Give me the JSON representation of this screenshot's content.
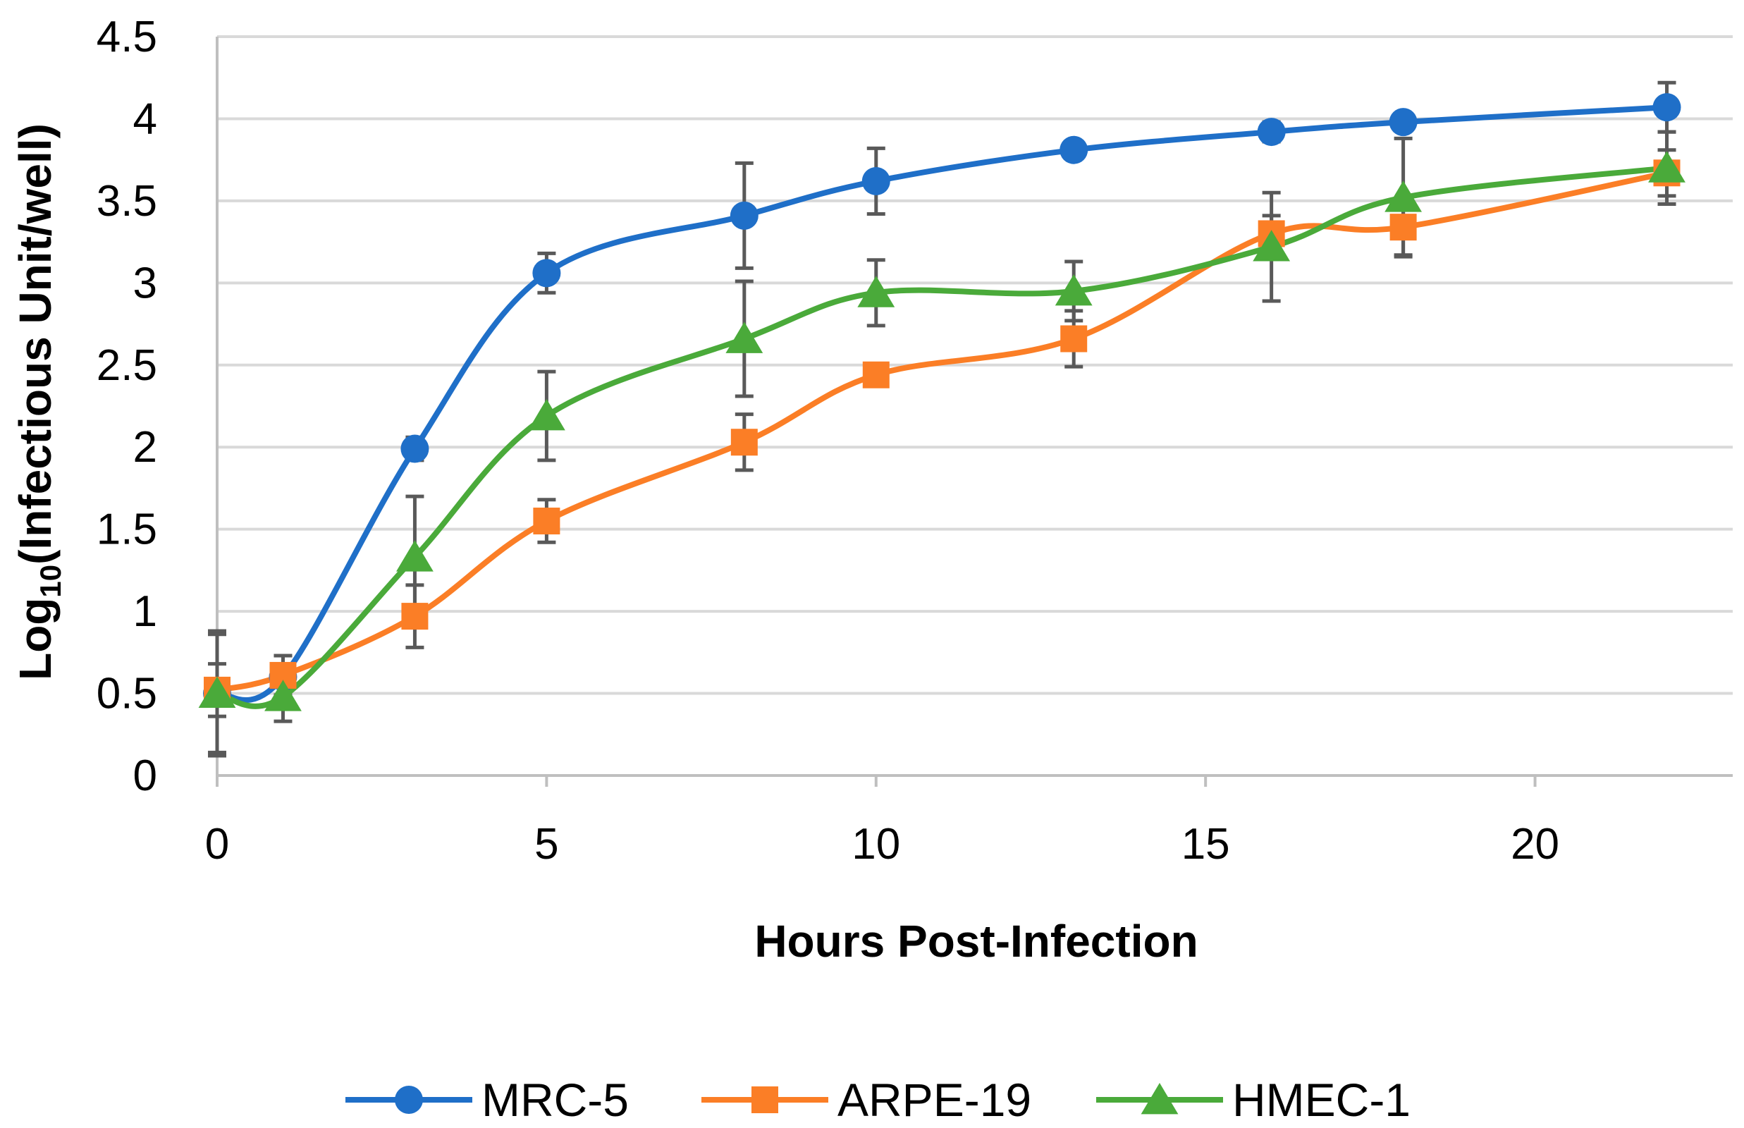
{
  "chart_data": {
    "type": "line",
    "title": "",
    "xlabel": "Hours Post-Infection",
    "ylabel": {
      "prefix": "Log",
      "subscript": "10",
      "suffix": "(Infectious Unit/well)"
    },
    "xlim": [
      0,
      23
    ],
    "ylim": [
      0,
      4.5
    ],
    "x_ticks": [
      "0",
      "5",
      "10",
      "15",
      "20"
    ],
    "y_ticks": [
      "0",
      "0.5",
      "1",
      "1.5",
      "2",
      "2.5",
      "3",
      "3.5",
      "4",
      "4.5"
    ],
    "grid": "horizontal",
    "legend_position": "bottom",
    "series": [
      {
        "name": "MRC-5",
        "color": "#1f6fc8",
        "marker": "circle",
        "x": [
          0,
          1,
          3,
          5,
          8,
          10,
          13,
          16,
          18,
          22
        ],
        "y": [
          0.5,
          0.6,
          1.99,
          3.06,
          3.41,
          3.62,
          3.81,
          3.92,
          3.98,
          4.07
        ],
        "error": [
          0.38,
          0.13,
          0.07,
          0.12,
          0.32,
          0.2,
          0.02,
          0.06,
          0.04,
          0.15
        ]
      },
      {
        "name": "ARPE-19",
        "color": "#fb7e26",
        "marker": "square",
        "x": [
          0,
          1,
          3,
          5,
          8,
          10,
          13,
          16,
          18,
          22
        ],
        "y": [
          0.52,
          0.61,
          0.97,
          1.55,
          2.03,
          2.44,
          2.66,
          3.3,
          3.34,
          3.67
        ],
        "error": [
          0.16,
          0.12,
          0.19,
          0.13,
          0.17,
          0.02,
          0.17,
          0.11,
          0.17,
          0.14
        ]
      },
      {
        "name": "HMEC-1",
        "color": "#4aaa3a",
        "marker": "triangle",
        "x": [
          0,
          1,
          3,
          5,
          8,
          10,
          13,
          16,
          18,
          22
        ],
        "y": [
          0.5,
          0.48,
          1.33,
          2.19,
          2.66,
          2.94,
          2.95,
          3.22,
          3.52,
          3.7
        ],
        "error": [
          0.36,
          0.15,
          0.37,
          0.27,
          0.35,
          0.2,
          0.18,
          0.33,
          0.36,
          0.22
        ]
      }
    ]
  }
}
